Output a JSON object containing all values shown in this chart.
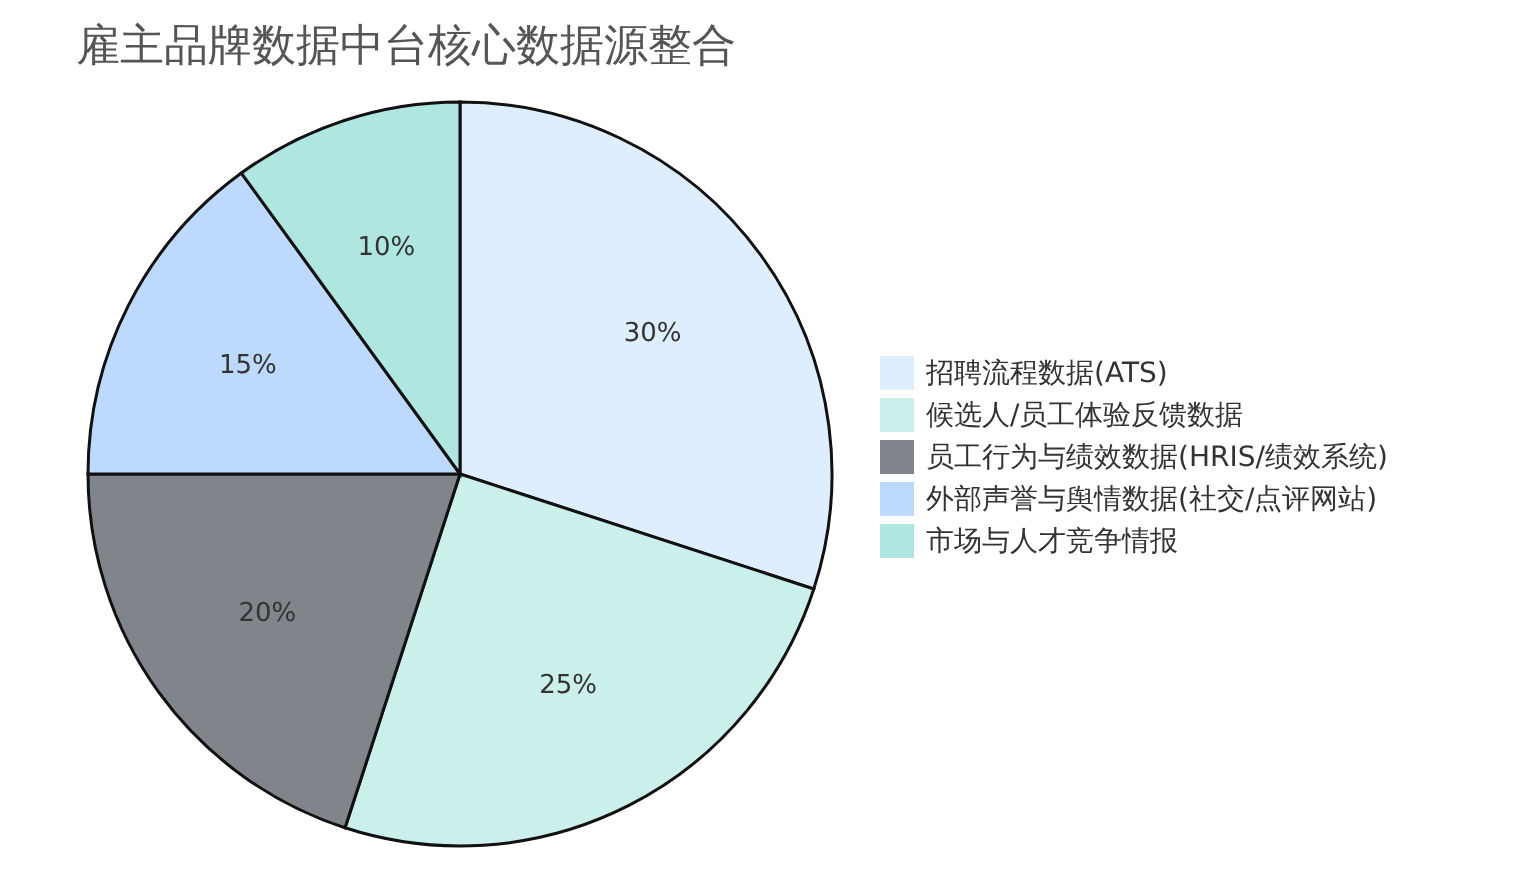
{
  "chart_data": {
    "type": "pie",
    "title": "雇主品牌数据中台核心数据源整合",
    "categories": [
      "招聘流程数据(ATS)",
      "候选人/员工体验反馈数据",
      "员工行为与绩效数据(HRIS/绩效系统)",
      "外部声誉与舆情数据(社交/点评网站)",
      "市场与人才竞争情报"
    ],
    "values": [
      30,
      25,
      20,
      15,
      10
    ],
    "value_labels": [
      "30%",
      "25%",
      "20%",
      "15%",
      "10%"
    ],
    "colors": [
      "#dfeeff",
      "#cbf0ec",
      "#7f858b",
      "#bdd9fd",
      "#b0e6e0"
    ],
    "legend": "right"
  }
}
